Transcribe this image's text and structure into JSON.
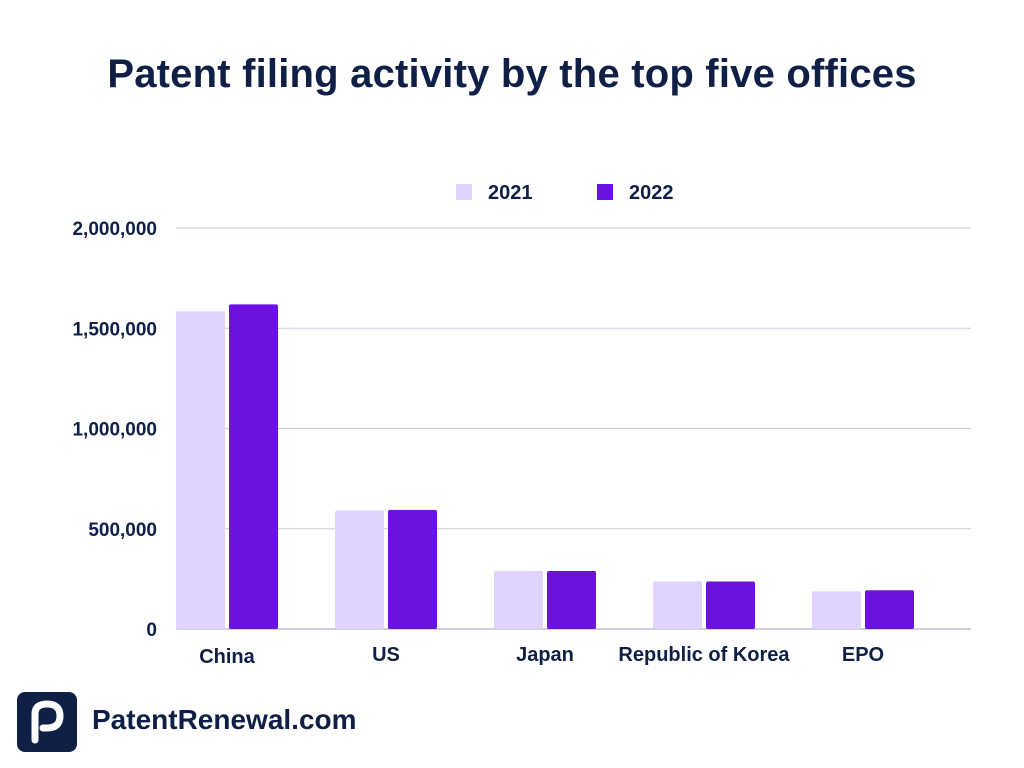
{
  "brand": {
    "site": "PatentRenewal.com",
    "logo_letter": "P"
  },
  "colors": {
    "series_2021": "#e0d4ff",
    "series_2022": "#6b12e0",
    "text": "#0f1f45",
    "grid": "#c9cbe0"
  },
  "chart_data": {
    "type": "bar",
    "title": "Patent filing activity by the top five offices",
    "xlabel": "",
    "ylabel": "",
    "categories": [
      "China",
      "US",
      "Japan",
      "Republic of Korea",
      "EPO"
    ],
    "series": [
      {
        "name": "2021",
        "values": [
          1585000,
          591000,
          289000,
          238000,
          188000
        ]
      },
      {
        "name": "2022",
        "values": [
          1619000,
          594000,
          289000,
          237000,
          193000
        ]
      }
    ],
    "ylim": [
      0,
      2000000
    ],
    "yticks": [
      0,
      500000,
      1000000,
      1500000,
      2000000
    ],
    "ytick_labels": [
      "0",
      "500,000",
      "1,000,000",
      "1,500,000",
      "2,000,000"
    ],
    "grid": true,
    "legend_position": "top-center"
  }
}
